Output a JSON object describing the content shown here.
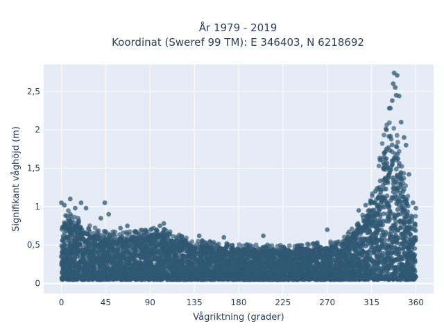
{
  "chart_data": {
    "type": "scatter",
    "title_line1": "År 1979 - 2019",
    "title_line2": "Koordinat (Sweref 99 TM): E 346403, N 6218692",
    "xlabel": "Vågriktning (grader)",
    "ylabel": "Signifikant våghöjd (m)",
    "xlim": [
      -18,
      378
    ],
    "ylim": [
      -0.13,
      2.85
    ],
    "x_ticks": [
      0,
      45,
      90,
      135,
      180,
      225,
      270,
      315,
      360
    ],
    "y_ticks": [
      {
        "value": 0,
        "label": "0"
      },
      {
        "value": 0.5,
        "label": "0,5"
      },
      {
        "value": 1,
        "label": "1"
      },
      {
        "value": 1.5,
        "label": "1,5"
      },
      {
        "value": 2,
        "label": "2"
      },
      {
        "value": 2.5,
        "label": "2,5"
      }
    ],
    "marker_color": "#2f5871",
    "plot_bg": "#e5ecf6",
    "grid": true,
    "envelope": {
      "direction": [
        0,
        5,
        10,
        20,
        30,
        45,
        60,
        75,
        90,
        100,
        110,
        120,
        135,
        150,
        165,
        180,
        195,
        210,
        225,
        240,
        255,
        270,
        280,
        290,
        300,
        310,
        315,
        320,
        325,
        330,
        335,
        340,
        345,
        350,
        355,
        360
      ],
      "typical_max": [
        0.72,
        0.85,
        0.82,
        0.72,
        0.65,
        0.6,
        0.58,
        0.6,
        0.62,
        0.65,
        0.6,
        0.55,
        0.5,
        0.48,
        0.46,
        0.45,
        0.44,
        0.44,
        0.44,
        0.45,
        0.46,
        0.48,
        0.5,
        0.58,
        0.7,
        0.85,
        1.0,
        1.2,
        1.55,
        1.85,
        2.05,
        1.85,
        1.45,
        1.1,
        0.9,
        0.75
      ],
      "typical_min": 0.05
    },
    "highlights": [
      {
        "x": 0,
        "y": 1.05
      },
      {
        "x": 3,
        "y": 1.02
      },
      {
        "x": 9,
        "y": 1.1
      },
      {
        "x": 14,
        "y": 0.98
      },
      {
        "x": 20,
        "y": 1.05
      },
      {
        "x": 25,
        "y": 0.98
      },
      {
        "x": 40,
        "y": 0.85
      },
      {
        "x": 44,
        "y": 1.05
      },
      {
        "x": 48,
        "y": 0.9
      },
      {
        "x": 60,
        "y": 0.72
      },
      {
        "x": 67,
        "y": 0.75
      },
      {
        "x": 75,
        "y": 0.68
      },
      {
        "x": 100,
        "y": 0.75
      },
      {
        "x": 104,
        "y": 0.78
      },
      {
        "x": 140,
        "y": 0.62
      },
      {
        "x": 165,
        "y": 0.6
      },
      {
        "x": 205,
        "y": 0.62
      },
      {
        "x": 270,
        "y": 0.7
      },
      {
        "x": 302,
        "y": 0.95
      },
      {
        "x": 309,
        "y": 1.02
      },
      {
        "x": 319,
        "y": 1.2
      },
      {
        "x": 323,
        "y": 1.25
      },
      {
        "x": 328,
        "y": 1.55
      },
      {
        "x": 330,
        "y": 2.0
      },
      {
        "x": 333,
        "y": 2.28
      },
      {
        "x": 336,
        "y": 2.38
      },
      {
        "x": 337,
        "y": 2.6
      },
      {
        "x": 338,
        "y": 2.74
      },
      {
        "x": 339,
        "y": 2.55
      },
      {
        "x": 340,
        "y": 2.45
      },
      {
        "x": 341,
        "y": 2.71
      },
      {
        "x": 343,
        "y": 2.44
      },
      {
        "x": 345,
        "y": 2.1
      },
      {
        "x": 348,
        "y": 1.9
      },
      {
        "x": 350,
        "y": 1.8
      },
      {
        "x": 353,
        "y": 1.42
      },
      {
        "x": 357,
        "y": 1.05
      },
      {
        "x": 360,
        "y": 0.98
      }
    ]
  }
}
